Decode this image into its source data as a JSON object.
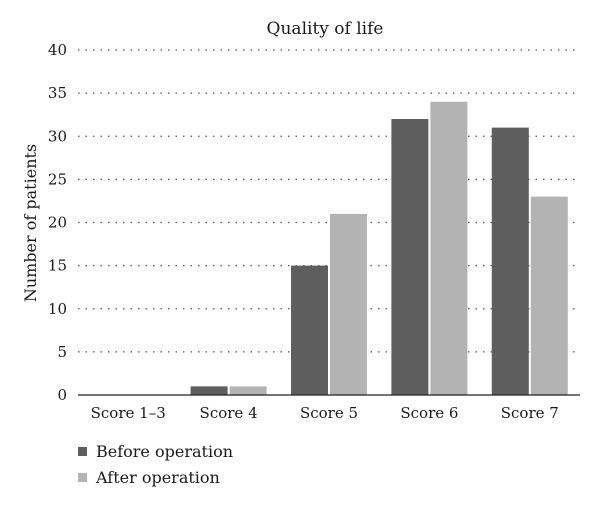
{
  "chart_data": {
    "type": "bar",
    "title": "Quality of life",
    "xlabel": "",
    "ylabel": "Number of patients",
    "categories": [
      "Score 1–3",
      "Score 4",
      "Score 5",
      "Score 6",
      "Score 7"
    ],
    "series": [
      {
        "name": "Before operation",
        "values": [
          0,
          1,
          15,
          32,
          31
        ],
        "color": "#5e5e5e"
      },
      {
        "name": "After operation",
        "values": [
          0,
          1,
          21,
          34,
          23
        ],
        "color": "#b3b3b3"
      }
    ],
    "ylim": [
      0,
      40
    ],
    "yticks": [
      0,
      5,
      10,
      15,
      20,
      25,
      30,
      35,
      40
    ],
    "grid": true,
    "grid_style": "dotted horizontal",
    "legend_position": "bottom-left"
  }
}
